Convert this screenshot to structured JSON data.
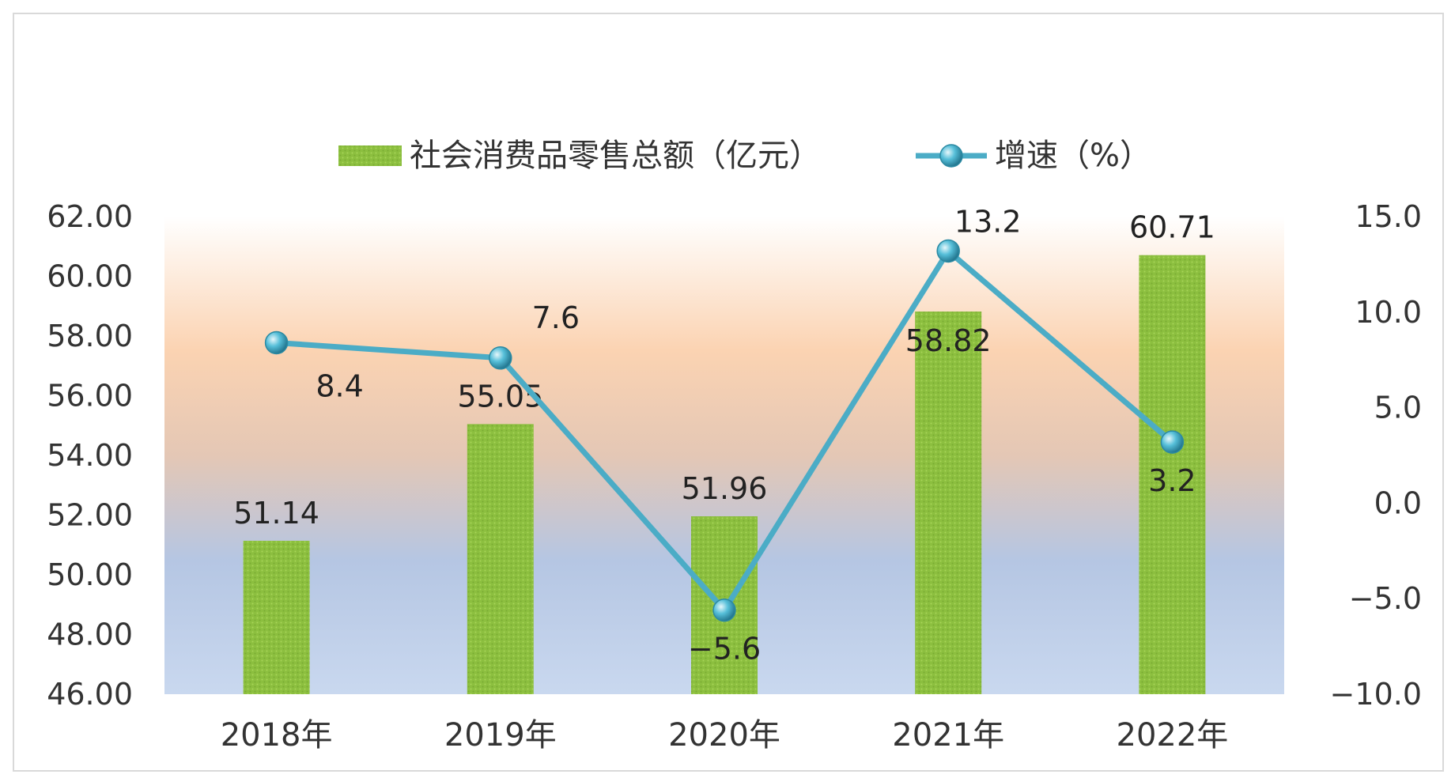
{
  "chart_data": {
    "type": "bar",
    "title": "",
    "categories": [
      "2018年",
      "2019年",
      "2020年",
      "2021年",
      "2022年"
    ],
    "series": [
      {
        "name": "社会消费品零售总额（亿元）",
        "type": "bar",
        "axis": "left",
        "values": [
          51.14,
          55.05,
          51.96,
          58.82,
          60.71
        ],
        "labels": [
          "51.14",
          "55.05",
          "51.96",
          "58.82",
          "60.71"
        ],
        "color": "#8cbf3f"
      },
      {
        "name": "增速（%）",
        "type": "line",
        "axis": "right",
        "values": [
          8.4,
          7.6,
          -5.6,
          13.2,
          3.2
        ],
        "labels": [
          "8.4",
          "7.6",
          "−5.6",
          "13.2",
          "3.2"
        ],
        "color": "#4bacc6"
      }
    ],
    "left_axis": {
      "min": 46,
      "max": 62,
      "ticks": [
        "62.00",
        "60.00",
        "58.00",
        "56.00",
        "54.00",
        "52.00",
        "50.00",
        "48.00",
        "46.00"
      ],
      "tick_values": [
        62,
        60,
        58,
        56,
        54,
        52,
        50,
        48,
        46
      ]
    },
    "right_axis": {
      "min": -10,
      "max": 15,
      "ticks": [
        "15.0",
        "10.0",
        "5.0",
        "0.0",
        "−5.0",
        "−10.0"
      ],
      "tick_values": [
        15,
        10,
        5,
        0,
        -5,
        -10
      ]
    },
    "legend_position": "top",
    "grid": false
  }
}
